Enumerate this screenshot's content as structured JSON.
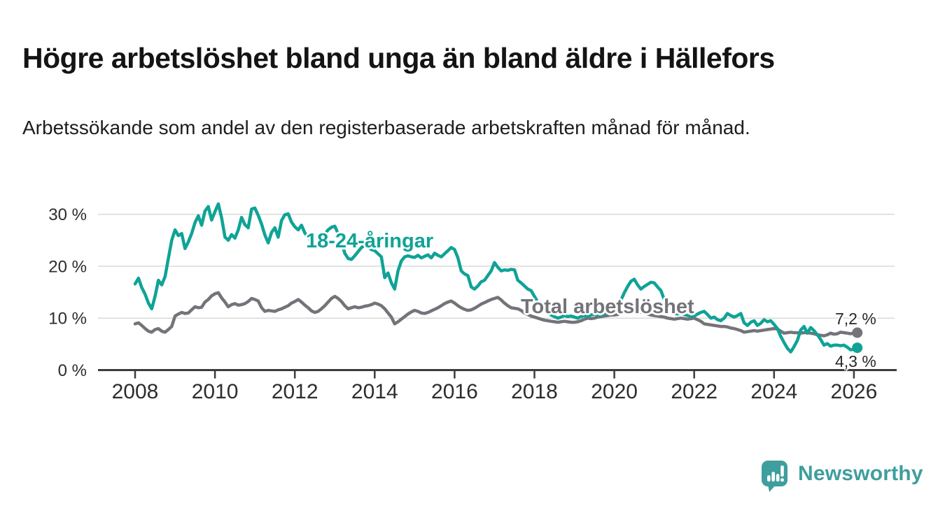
{
  "title": "Högre arbetslöshet bland unga än bland äldre i Hällefors",
  "subtitle": "Arbetssökande som andel av den registerbaserade arbetskraften månad för månad.",
  "branding": {
    "logo_text": "Newsworthy",
    "logo_color": "#3f9e9e",
    "logo_icon": "bar-chart-speech-bubble-icon"
  },
  "chart_data": {
    "type": "line",
    "frequency": "monthly",
    "x_start_year": 2008,
    "x_start_month": 1,
    "x_end_year": 2026,
    "x_end_month": 2,
    "x_tick_years": [
      2008,
      2010,
      2012,
      2014,
      2016,
      2018,
      2020,
      2022,
      2024,
      2026
    ],
    "x_tick_labels": [
      "2008",
      "2010",
      "2012",
      "2014",
      "2016",
      "2018",
      "2020",
      "2022",
      "2024",
      "2026"
    ],
    "y_ticks": [
      0,
      10,
      20,
      30
    ],
    "y_tick_labels": [
      "0 %",
      "10 %",
      "20 %",
      "30 %"
    ],
    "ylim": [
      0,
      33
    ],
    "grid": "horizontal",
    "unit": "%",
    "series": [
      {
        "name": "18-24-åringar",
        "color": "#0fa396",
        "end_label": "4,3 %",
        "end_value": 4.3,
        "values": [
          16.6,
          17.7,
          15.9,
          14.6,
          12.9,
          11.8,
          14.2,
          17.3,
          16.4,
          18.0,
          21.5,
          25.0,
          27.0,
          25.9,
          26.3,
          23.4,
          24.7,
          26.3,
          28.4,
          29.7,
          27.9,
          30.6,
          31.5,
          28.9,
          30.5,
          32.0,
          29.3,
          25.6,
          25.0,
          26.1,
          25.4,
          27.0,
          29.4,
          28.0,
          27.4,
          31.0,
          31.2,
          29.8,
          28.1,
          26.0,
          24.5,
          26.5,
          27.4,
          25.6,
          28.8,
          29.9,
          30.1,
          28.5,
          27.6,
          27.0,
          27.9,
          26.4,
          25.6,
          24.5,
          23.5,
          24.3,
          25.2,
          26.2,
          27.0,
          27.5,
          27.7,
          26.3,
          24.8,
          22.5,
          21.5,
          21.3,
          22.0,
          22.8,
          23.6,
          24.0,
          23.6,
          23.2,
          23.0,
          22.4,
          21.8,
          17.8,
          18.7,
          16.8,
          15.6,
          19.1,
          21.0,
          21.8,
          22.0,
          21.8,
          21.7,
          22.1,
          21.6,
          21.9,
          22.2,
          21.6,
          22.5,
          22.1,
          21.8,
          22.4,
          23.0,
          23.6,
          23.2,
          21.6,
          19.1,
          18.5,
          18.2,
          16.0,
          15.6,
          16.2,
          17.0,
          17.3,
          18.2,
          19.1,
          20.7,
          19.8,
          19.1,
          19.3,
          19.2,
          19.4,
          19.3,
          17.3,
          16.8,
          16.2,
          15.6,
          15.3,
          14.2,
          13.1,
          12.3,
          11.6,
          11.0,
          10.6,
          10.3,
          10.0,
          10.2,
          10.5,
          10.3,
          10.4,
          10.2,
          10.0,
          10.3,
          10.5,
          10.4,
          10.6,
          10.8,
          10.5,
          10.6,
          10.9,
          11.2,
          11.6,
          12.1,
          12.6,
          13.5,
          14.9,
          16.1,
          17.1,
          17.5,
          16.4,
          15.6,
          16.1,
          16.5,
          16.9,
          16.8,
          16.0,
          15.3,
          13.6,
          12.1,
          11.3,
          10.9,
          10.8,
          11.0,
          10.7,
          10.5,
          10.4,
          10.4,
          10.8,
          11.1,
          11.3,
          10.7,
          10.0,
          10.2,
          9.7,
          9.5,
          10.0,
          10.9,
          10.5,
          10.2,
          10.5,
          10.9,
          9.1,
          8.6,
          9.2,
          9.5,
          8.6,
          9.0,
          9.7,
          9.3,
          9.5,
          8.8,
          8.0,
          6.5,
          5.3,
          4.2,
          3.5,
          4.5,
          5.7,
          7.7,
          8.4,
          7.1,
          8.2,
          7.6,
          6.8,
          5.9,
          4.8,
          5.1,
          4.6,
          4.8,
          4.8,
          4.7,
          4.8,
          4.4,
          3.9,
          4.0,
          4.3
        ]
      },
      {
        "name": "Total arbetslöshet",
        "color": "#73737a",
        "end_label": "7,2 %",
        "end_value": 7.2,
        "values": [
          8.9,
          9.1,
          8.6,
          8.0,
          7.5,
          7.3,
          7.8,
          8.0,
          7.5,
          7.3,
          7.8,
          8.4,
          10.4,
          10.8,
          11.1,
          10.9,
          11.0,
          11.6,
          12.2,
          12.0,
          12.1,
          13.1,
          13.6,
          14.3,
          14.7,
          14.9,
          13.9,
          13.1,
          12.2,
          12.6,
          12.8,
          12.5,
          12.6,
          12.8,
          13.2,
          13.8,
          13.6,
          13.3,
          12.0,
          11.3,
          11.5,
          11.4,
          11.3,
          11.6,
          11.8,
          12.1,
          12.4,
          12.9,
          13.2,
          13.6,
          13.1,
          12.5,
          12.0,
          11.4,
          11.1,
          11.3,
          11.8,
          12.4,
          13.1,
          13.8,
          14.2,
          13.8,
          13.2,
          12.4,
          11.8,
          12.0,
          12.2,
          12.0,
          12.1,
          12.3,
          12.4,
          12.6,
          12.9,
          12.7,
          12.4,
          11.8,
          11.0,
          10.2,
          8.9,
          9.3,
          9.8,
          10.3,
          10.8,
          11.2,
          11.5,
          11.3,
          11.0,
          10.9,
          11.1,
          11.4,
          11.7,
          12.0,
          12.4,
          12.8,
          13.1,
          13.3,
          12.9,
          12.4,
          12.0,
          11.7,
          11.5,
          11.6,
          11.9,
          12.3,
          12.7,
          13.0,
          13.3,
          13.6,
          13.8,
          14.0,
          13.5,
          12.9,
          12.4,
          12.0,
          11.9,
          11.8,
          11.5,
          11.0,
          10.7,
          10.4,
          10.2,
          10.0,
          9.8,
          9.6,
          9.5,
          9.4,
          9.3,
          9.2,
          9.3,
          9.4,
          9.3,
          9.2,
          9.2,
          9.3,
          9.5,
          9.8,
          10.0,
          9.9,
          10.0,
          10.2,
          10.3,
          10.4,
          10.5,
          10.6,
          10.6,
          10.7,
          11.0,
          11.3,
          11.5,
          11.6,
          11.5,
          11.3,
          11.2,
          11.0,
          10.8,
          10.6,
          10.5,
          10.4,
          10.3,
          10.2,
          10.0,
          9.9,
          9.8,
          9.9,
          10.0,
          9.9,
          9.8,
          9.9,
          10.0,
          9.7,
          9.4,
          8.9,
          8.8,
          8.7,
          8.6,
          8.5,
          8.4,
          8.4,
          8.3,
          8.1,
          8.0,
          7.8,
          7.6,
          7.3,
          7.4,
          7.5,
          7.6,
          7.5,
          7.6,
          7.7,
          7.8,
          7.9,
          8.0,
          7.9,
          7.5,
          7.1,
          7.2,
          7.3,
          7.2,
          7.2,
          7.1,
          7.2,
          7.2,
          7.1,
          7.0,
          6.8,
          6.7,
          6.6,
          6.8,
          7.1,
          6.9,
          7.0,
          7.3,
          7.2,
          7.1,
          7.0,
          7.1,
          7.2
        ]
      }
    ]
  }
}
